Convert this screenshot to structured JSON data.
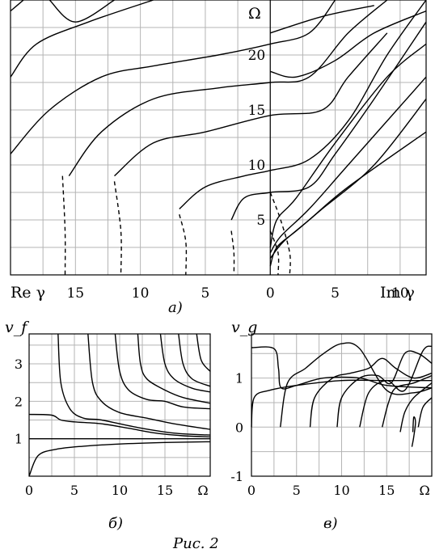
{
  "figure_caption": "Рис. 2",
  "chart_data": [
    {
      "id": "a",
      "panel_label": "a)",
      "type": "line",
      "x_label_left": "Re γ",
      "x_label_right": "Im γ",
      "y_label": "Ω",
      "x_ticks_left": [
        "15",
        "10",
        "5",
        "0"
      ],
      "x_ticks_right": [
        "5",
        "10"
      ],
      "y_ticks": [
        "5",
        "10",
        "15",
        "20"
      ],
      "x_range": [
        -20,
        12
      ],
      "y_range": [
        0,
        25
      ],
      "grid": true,
      "series_solid": [
        [
          [
            0,
            0.8
          ],
          [
            0.5,
            2.5
          ],
          [
            2,
            4
          ],
          [
            4,
            6
          ],
          [
            8,
            10
          ],
          [
            12,
            16
          ]
        ],
        [
          [
            0,
            1.5
          ],
          [
            1,
            3
          ],
          [
            3,
            5
          ],
          [
            6,
            8
          ],
          [
            12,
            13
          ]
        ],
        [
          [
            0,
            2
          ],
          [
            0.8,
            3.5
          ],
          [
            3,
            6
          ],
          [
            6,
            10
          ],
          [
            12,
            18
          ]
        ],
        [
          [
            0,
            2.5
          ],
          [
            0.5,
            5
          ],
          [
            2,
            7
          ],
          [
            5,
            12
          ],
          [
            9,
            18
          ],
          [
            12,
            21
          ]
        ],
        [
          [
            -3,
            5
          ],
          [
            -2,
            7
          ],
          [
            0,
            7.5
          ],
          [
            3,
            8
          ],
          [
            5,
            11
          ],
          [
            8,
            16
          ],
          [
            12,
            23
          ]
        ],
        [
          [
            -7,
            6
          ],
          [
            -5,
            8
          ],
          [
            -2,
            9
          ],
          [
            0,
            9.5
          ],
          [
            3,
            10.5
          ],
          [
            6,
            14
          ],
          [
            9,
            20
          ],
          [
            12,
            25
          ]
        ],
        [
          [
            -12,
            9
          ],
          [
            -9,
            12
          ],
          [
            -5,
            13
          ],
          [
            0,
            14.5
          ],
          [
            4,
            15
          ],
          [
            6,
            18
          ],
          [
            9,
            22
          ]
        ],
        [
          [
            -15.5,
            9
          ],
          [
            -13,
            13
          ],
          [
            -9,
            16
          ],
          [
            -4,
            17
          ],
          [
            0,
            17.5
          ],
          [
            3,
            18
          ],
          [
            6,
            22
          ],
          [
            9,
            25
          ]
        ],
        [
          [
            -20,
            11
          ],
          [
            -17,
            15
          ],
          [
            -13,
            18
          ],
          [
            -9,
            19
          ],
          [
            -4,
            20
          ],
          [
            0,
            21
          ],
          [
            3,
            22
          ],
          [
            5,
            25
          ]
        ],
        [
          [
            -20,
            18
          ],
          [
            -18,
            21
          ],
          [
            -14,
            23
          ],
          [
            -9,
            25
          ]
        ],
        [
          [
            -17,
            25
          ],
          [
            -15,
            23
          ],
          [
            -12,
            25
          ]
        ],
        [
          [
            -19,
            25
          ],
          [
            -20,
            24
          ]
        ],
        [
          [
            0,
            18.5
          ],
          [
            2,
            18
          ],
          [
            5,
            19.5
          ],
          [
            8,
            22
          ],
          [
            12,
            24
          ]
        ],
        [
          [
            0,
            22
          ],
          [
            4,
            23.5
          ],
          [
            8,
            24.5
          ]
        ]
      ],
      "series_dashed": [
        [
          [
            -3,
            4
          ],
          [
            -2.8,
            2
          ],
          [
            -2.8,
            0
          ]
        ],
        [
          [
            -7,
            5.5
          ],
          [
            -6.5,
            3
          ],
          [
            -6.5,
            0
          ]
        ],
        [
          [
            -12,
            8.5
          ],
          [
            -11.5,
            4
          ],
          [
            -11.5,
            0
          ]
        ],
        [
          [
            -16,
            9
          ],
          [
            -15.8,
            4
          ],
          [
            -15.8,
            0
          ]
        ],
        [
          [
            0,
            7.5
          ],
          [
            0.8,
            5
          ],
          [
            1.5,
            2
          ],
          [
            1.5,
            0
          ]
        ],
        [
          [
            0,
            4
          ],
          [
            0.6,
            2
          ],
          [
            0.6,
            0
          ]
        ]
      ]
    },
    {
      "id": "b",
      "panel_label": "б)",
      "type": "line",
      "y_label": "v_f",
      "x_label": "Ω",
      "x_ticks": [
        "0",
        "5",
        "10",
        "15",
        "Ω"
      ],
      "y_ticks": [
        "1",
        "2",
        "3"
      ],
      "x_range": [
        0,
        20
      ],
      "y_range": [
        0,
        3.8
      ],
      "grid": true,
      "series": [
        [
          [
            0,
            0
          ],
          [
            1,
            0.55
          ],
          [
            3,
            0.72
          ],
          [
            6,
            0.8
          ],
          [
            10,
            0.86
          ],
          [
            15,
            0.9
          ],
          [
            20,
            0.92
          ]
        ],
        [
          [
            0,
            1.65
          ],
          [
            2.5,
            1.63
          ],
          [
            3.5,
            1.5
          ],
          [
            5,
            1.45
          ],
          [
            8,
            1.4
          ],
          [
            11,
            1.28
          ],
          [
            14,
            1.15
          ],
          [
            17,
            1.08
          ],
          [
            20,
            1.05
          ]
        ],
        [
          [
            3.2,
            3.8
          ],
          [
            3.5,
            2.5
          ],
          [
            4.5,
            1.8
          ],
          [
            6,
            1.55
          ],
          [
            8,
            1.5
          ],
          [
            12,
            1.3
          ],
          [
            16,
            1.15
          ],
          [
            20,
            1.1
          ]
        ],
        [
          [
            6.5,
            3.8
          ],
          [
            7,
            2.5
          ],
          [
            8,
            2
          ],
          [
            10,
            1.7
          ],
          [
            13,
            1.55
          ],
          [
            16,
            1.4
          ],
          [
            20,
            1.25
          ]
        ],
        [
          [
            9.5,
            3.8
          ],
          [
            10,
            2.8
          ],
          [
            11,
            2.3
          ],
          [
            13,
            2.05
          ],
          [
            15,
            2.0
          ],
          [
            17,
            1.85
          ],
          [
            20,
            1.8
          ]
        ],
        [
          [
            12,
            3.8
          ],
          [
            12.3,
            3.0
          ],
          [
            13,
            2.6
          ],
          [
            15,
            2.3
          ],
          [
            17,
            2.1
          ],
          [
            20,
            1.95
          ]
        ],
        [
          [
            14.5,
            3.8
          ],
          [
            15,
            3.0
          ],
          [
            16,
            2.6
          ],
          [
            18,
            2.35
          ],
          [
            20,
            2.25
          ]
        ],
        [
          [
            16.5,
            3.8
          ],
          [
            17,
            3.0
          ],
          [
            18,
            2.6
          ],
          [
            20,
            2.4
          ]
        ],
        [
          [
            18.5,
            3.8
          ],
          [
            19,
            3.1
          ],
          [
            20,
            2.8
          ]
        ],
        [
          [
            0,
            1.0
          ],
          [
            5,
            1.0
          ],
          [
            10,
            1.0
          ],
          [
            20,
            1.0
          ]
        ]
      ]
    },
    {
      "id": "c",
      "panel_label": "в)",
      "type": "line",
      "y_label": "v_g",
      "x_label": "Ω",
      "x_ticks": [
        "0",
        "5",
        "10",
        "15",
        "Ω"
      ],
      "y_ticks": [
        "-1",
        "0",
        "1"
      ],
      "x_range": [
        0,
        20
      ],
      "y_range": [
        -1,
        1.9
      ],
      "grid": true,
      "series": [
        [
          [
            0,
            0
          ],
          [
            0.3,
            0.6
          ],
          [
            2,
            0.75
          ],
          [
            5,
            0.85
          ],
          [
            10,
            0.95
          ],
          [
            15,
            0.95
          ],
          [
            20,
            0.95
          ]
        ],
        [
          [
            0,
            1.62
          ],
          [
            2.5,
            1.6
          ],
          [
            3,
            1.2
          ],
          [
            3.3,
            0.8
          ],
          [
            5,
            0.85
          ],
          [
            8,
            1.0
          ],
          [
            12,
            1.0
          ],
          [
            15,
            0.85
          ],
          [
            20,
            0.8
          ]
        ],
        [
          [
            3.2,
            0
          ],
          [
            4,
            0.9
          ],
          [
            6,
            1.2
          ],
          [
            8,
            1.5
          ],
          [
            10,
            1.7
          ],
          [
            12,
            1.6
          ],
          [
            15,
            0.75
          ],
          [
            18,
            0.7
          ],
          [
            20,
            0.8
          ]
        ],
        [
          [
            6.5,
            0
          ],
          [
            7,
            0.6
          ],
          [
            9,
            1.0
          ],
          [
            11,
            1.1
          ],
          [
            13,
            1.2
          ],
          [
            14.5,
            1.4
          ],
          [
            16,
            1.2
          ],
          [
            18,
            1.0
          ],
          [
            20,
            1.1
          ]
        ],
        [
          [
            9.5,
            0
          ],
          [
            10,
            0.6
          ],
          [
            12,
            1.0
          ],
          [
            14,
            1.05
          ],
          [
            15.5,
            0.9
          ],
          [
            17,
            1.5
          ],
          [
            18.5,
            1.5
          ],
          [
            20,
            1.3
          ]
        ],
        [
          [
            12,
            0
          ],
          [
            13,
            0.7
          ],
          [
            15,
            0.95
          ],
          [
            17,
            0.75
          ],
          [
            19,
            1.55
          ],
          [
            20,
            1.65
          ]
        ],
        [
          [
            14.5,
            0
          ],
          [
            15.2,
            0.5
          ],
          [
            16,
            0.8
          ],
          [
            18,
            0.9
          ],
          [
            20,
            1.05
          ]
        ],
        [
          [
            16.5,
            -0.1
          ],
          [
            17,
            0.3
          ],
          [
            18,
            0.6
          ],
          [
            20,
            0.9
          ]
        ],
        [
          [
            18.5,
            0
          ],
          [
            19,
            0.4
          ],
          [
            20,
            0.6
          ]
        ],
        [
          [
            17.8,
            -0.4
          ],
          [
            18,
            -0.2
          ],
          [
            18.2,
            0.1
          ],
          [
            18,
            0.2
          ],
          [
            17.9,
            -0.1
          ]
        ]
      ]
    }
  ]
}
